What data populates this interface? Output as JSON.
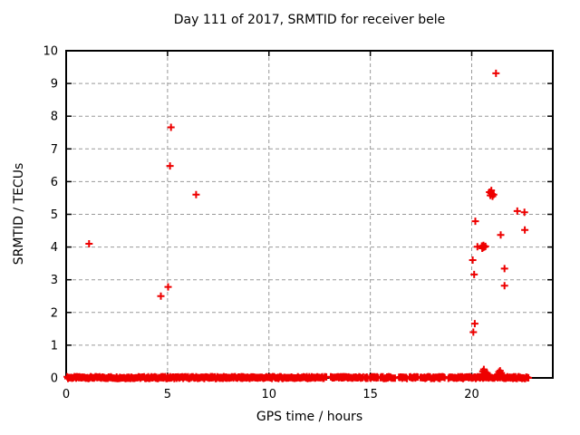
{
  "chart_data": {
    "type": "scatter",
    "title": "Day 111 of 2017, SRMTID for receiver bele",
    "xlabel": "GPS time / hours",
    "ylabel": "SRMTID / TECUs",
    "xlim": [
      0,
      24
    ],
    "ylim": [
      0,
      10
    ],
    "x_ticks": [
      0,
      5,
      10,
      15,
      20
    ],
    "y_ticks": [
      0,
      1,
      2,
      3,
      4,
      5,
      6,
      7,
      8,
      9,
      10
    ],
    "grid": true,
    "legend": "none",
    "marker": "plus-icon",
    "marker_color": "#ee0000",
    "grid_color": "#999999",
    "frame_color": "#000000",
    "points": [
      [
        1.13,
        4.1
      ],
      [
        4.67,
        2.5
      ],
      [
        5.03,
        2.78
      ],
      [
        5.12,
        6.48
      ],
      [
        5.17,
        7.66
      ],
      [
        6.41,
        5.6
      ],
      [
        20.05,
        3.6
      ],
      [
        20.08,
        1.4
      ],
      [
        20.12,
        3.16
      ],
      [
        20.15,
        1.66
      ],
      [
        20.18,
        4.79
      ],
      [
        20.28,
        4.01
      ],
      [
        20.5,
        4.03
      ],
      [
        20.52,
        3.96
      ],
      [
        20.55,
        3.98
      ],
      [
        20.58,
        4.05
      ],
      [
        20.62,
        4.0
      ],
      [
        20.68,
        4.02
      ],
      [
        20.88,
        5.68
      ],
      [
        20.92,
        5.58
      ],
      [
        20.95,
        5.65
      ],
      [
        20.97,
        5.73
      ],
      [
        21.0,
        5.62
      ],
      [
        21.03,
        5.55
      ],
      [
        21.08,
        5.6
      ],
      [
        21.2,
        9.31
      ],
      [
        21.43,
        4.37
      ],
      [
        21.62,
        3.34
      ],
      [
        21.62,
        2.82
      ],
      [
        22.25,
        5.1
      ],
      [
        22.6,
        5.06
      ],
      [
        22.62,
        4.52
      ]
    ],
    "baseline_value": 0,
    "baseline_segments": [
      [
        0.05,
        9.97
      ],
      [
        10.03,
        12.85
      ],
      [
        13.05,
        14.65
      ],
      [
        14.75,
        14.88
      ],
      [
        14.98,
        15.38
      ],
      [
        15.5,
        16.23
      ],
      [
        16.41,
        16.82
      ],
      [
        16.94,
        17.34
      ],
      [
        17.47,
        18.68
      ],
      [
        18.85,
        20.02
      ],
      [
        20.08,
        22.82
      ]
    ],
    "baseline_step": 0.04,
    "baseline_jitter": 0.06,
    "baseline_bump_points": [
      [
        20.5,
        0.12
      ],
      [
        20.55,
        0.2
      ],
      [
        20.6,
        0.26
      ],
      [
        20.64,
        0.18
      ],
      [
        20.7,
        0.12
      ],
      [
        20.76,
        0.15
      ],
      [
        20.82,
        0.09
      ],
      [
        21.28,
        0.1
      ],
      [
        21.34,
        0.18
      ],
      [
        21.4,
        0.22
      ],
      [
        21.46,
        0.15
      ],
      [
        21.52,
        0.09
      ]
    ]
  }
}
